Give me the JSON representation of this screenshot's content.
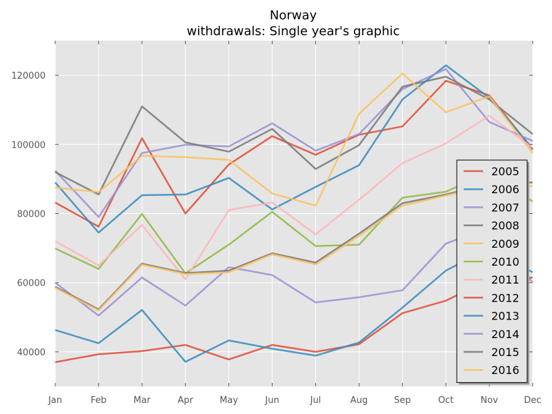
{
  "chart_data": {
    "type": "line",
    "title": "Norway",
    "subtitle": "withdrawals: Single year's graphic",
    "xlabel": "",
    "ylabel": "",
    "categories": [
      "Jan",
      "Feb",
      "Mar",
      "Apr",
      "May",
      "Jun",
      "Jul",
      "Aug",
      "Sep",
      "Oct",
      "Nov",
      "Dec"
    ],
    "ylim": [
      30000,
      130000
    ],
    "yticks": [
      40000,
      60000,
      80000,
      100000,
      120000
    ],
    "grid": true,
    "legend_position": "right",
    "series": [
      {
        "name": "2005",
        "color": "#E24A33",
        "values": [
          83200,
          76200,
          101800,
          80000,
          94200,
          102400,
          97000,
          102800,
          105200,
          118400,
          114200,
          98500
        ]
      },
      {
        "name": "2006",
        "color": "#348ABD",
        "values": [
          89000,
          74500,
          85300,
          85500,
          90300,
          81200,
          87700,
          94000,
          113000,
          122900,
          113500,
          98800
        ]
      },
      {
        "name": "2007",
        "color": "#988ED5",
        "values": [
          92400,
          79000,
          97500,
          99900,
          99400,
          106100,
          98200,
          103000,
          116000,
          121800,
          106500,
          101000
        ]
      },
      {
        "name": "2008",
        "color": "#777777",
        "values": [
          92000,
          85500,
          111000,
          100600,
          97900,
          104500,
          92900,
          99800,
          116700,
          119600,
          113000,
          103000
        ]
      },
      {
        "name": "2009",
        "color": "#FBC15E",
        "values": [
          87500,
          86200,
          96700,
          96300,
          95500,
          85800,
          82300,
          108900,
          120500,
          109300,
          113900,
          97500
        ]
      },
      {
        "name": "2010",
        "color": "#8EBA42",
        "values": [
          69900,
          64000,
          79900,
          62700,
          71000,
          80500,
          70600,
          71000,
          84600,
          86300,
          92000,
          83500
        ]
      },
      {
        "name": "2011",
        "color": "#FFB5B8",
        "values": [
          72000,
          65000,
          76700,
          61000,
          81000,
          83200,
          74000,
          84000,
          94600,
          100300,
          108300,
          99000
        ]
      },
      {
        "name": "2012",
        "color": "#E24A33",
        "values": [
          37000,
          39300,
          40200,
          42000,
          37800,
          42000,
          40000,
          42200,
          51200,
          54800,
          61000,
          61500
        ]
      },
      {
        "name": "2013",
        "color": "#348ABD",
        "values": [
          46300,
          42500,
          52100,
          37100,
          43300,
          40900,
          38900,
          42700,
          52800,
          63500,
          70000,
          63000
        ]
      },
      {
        "name": "2014",
        "color": "#988ED5",
        "values": [
          60000,
          50500,
          61500,
          53400,
          64500,
          62200,
          54300,
          55800,
          57800,
          71300,
          76000,
          60000
        ]
      },
      {
        "name": "2015",
        "color": "#777777",
        "values": [
          58800,
          52300,
          65500,
          62800,
          63500,
          68500,
          65800,
          74200,
          83000,
          85500,
          88500,
          89000
        ]
      },
      {
        "name": "2016",
        "color": "#FBC15E",
        "values": [
          58500,
          52000,
          65200,
          62500,
          63000,
          68200,
          65300,
          73500,
          82300,
          85200,
          88000,
          88000
        ]
      }
    ]
  }
}
